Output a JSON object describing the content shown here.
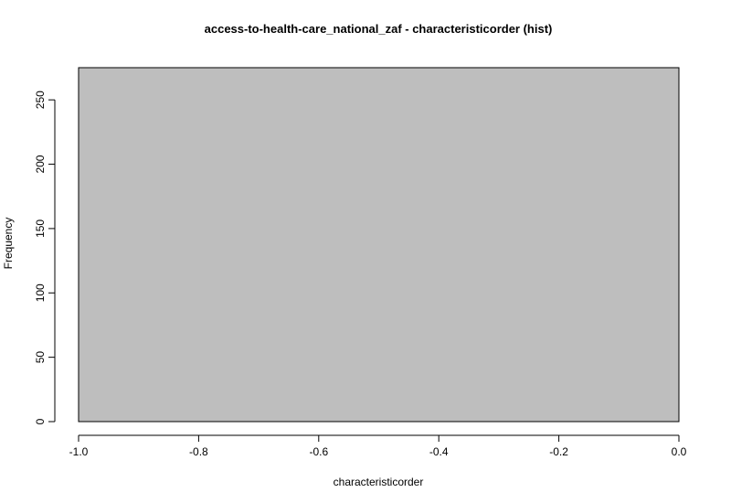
{
  "chart_data": {
    "type": "bar",
    "title": "access-to-health-care_national_zaf - characteristicorder (hist)",
    "xlabel": "characteristicorder",
    "ylabel": "Frequency",
    "bins": [
      {
        "start": -1.0,
        "end": 0.0,
        "count": 275
      }
    ],
    "xlim": [
      -1.0,
      0.0
    ],
    "ylim": [
      0,
      275
    ],
    "x_ticks": [
      "-1.0",
      "-0.8",
      "-0.6",
      "-0.4",
      "-0.2",
      "0.0"
    ],
    "y_ticks": [
      "0",
      "50",
      "100",
      "150",
      "200",
      "250"
    ],
    "grid": false,
    "colors": {
      "bar_fill": "#bebebe",
      "bar_stroke": "#000000"
    }
  }
}
